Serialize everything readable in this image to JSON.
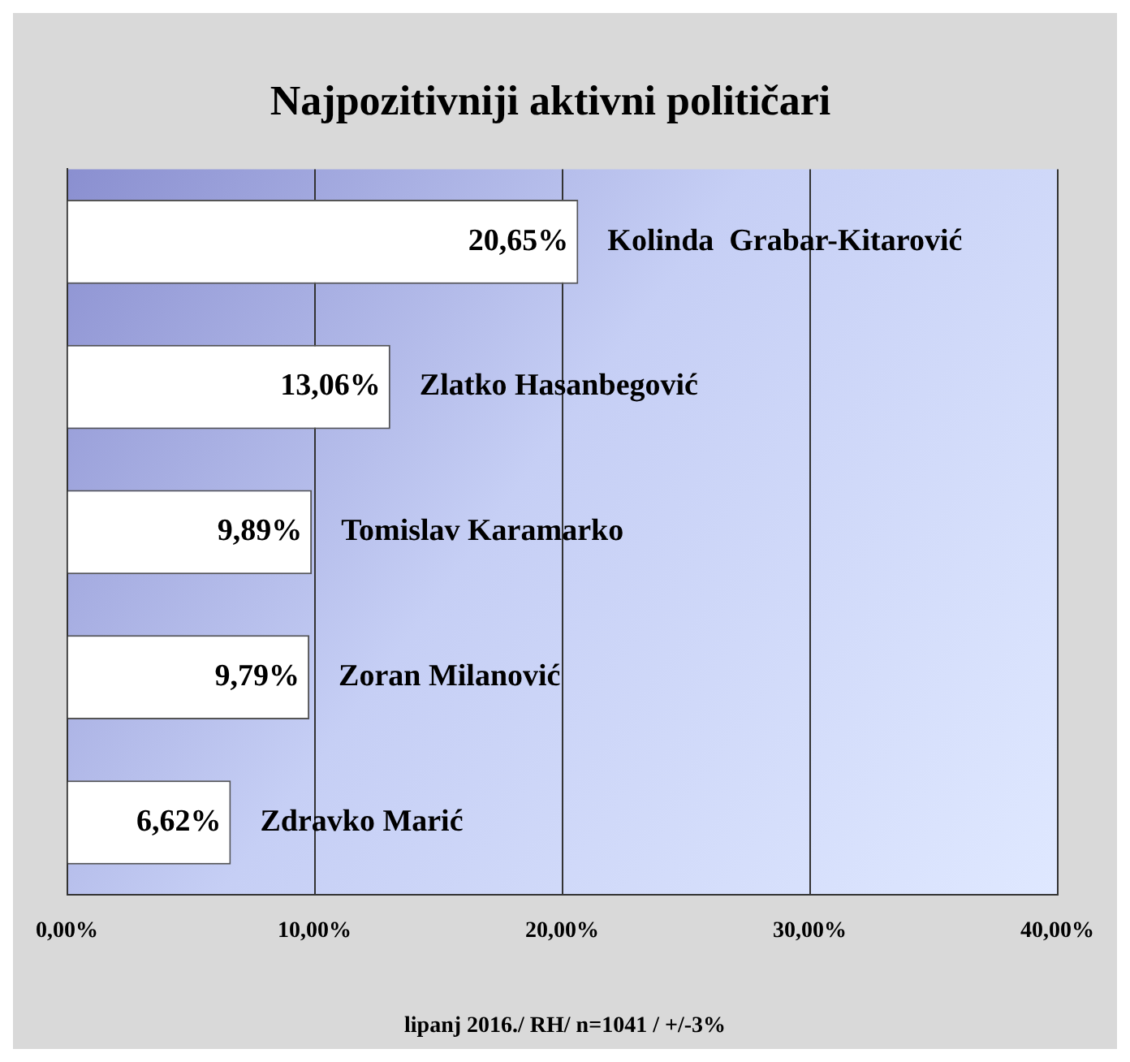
{
  "chart_data": {
    "type": "bar",
    "orientation": "horizontal",
    "title": "Najpozitivniji aktivni političari",
    "categories": [
      "Kolinda  Grabar-Kitarović",
      "Zlatko Hasanbegović",
      "Tomislav Karamarko",
      "Zoran Milanović",
      "Zdravko Marić"
    ],
    "values": [
      20.65,
      13.06,
      9.89,
      9.79,
      6.62
    ],
    "value_labels": [
      "20,65%",
      "13,06%",
      "9,89%",
      "9,79%",
      "6,62%"
    ],
    "color": "#ffffff",
    "xlim": [
      0,
      40
    ],
    "xticks": [
      {
        "value": 0,
        "label": "0,00%"
      },
      {
        "value": 10,
        "label": "10,00%"
      },
      {
        "value": 20,
        "label": "20,00%"
      },
      {
        "value": 30,
        "label": "30,00%"
      },
      {
        "value": 40,
        "label": "40,00%"
      }
    ],
    "grid": "x",
    "legend": false,
    "annotations": [
      "lipanj 2016./ RH/ n=1041 / +/-3%"
    ]
  }
}
